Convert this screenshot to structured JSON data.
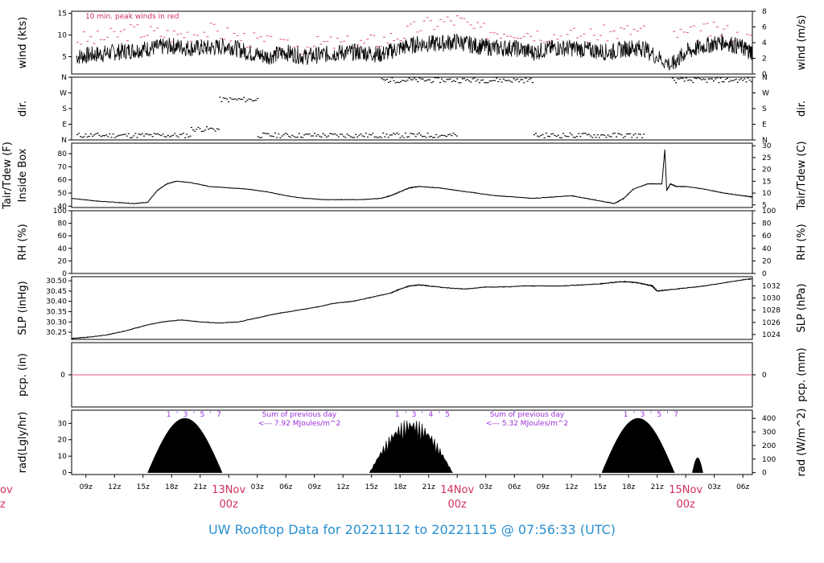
{
  "footer": {
    "text": "UW Rooftop Data for 20221112  to  20221115 @ 07:56:33  (UTC)",
    "color": "#2a8fd0"
  },
  "time_axis": {
    "start_hour_utc": 7.5,
    "end_hour_utc": 79.0,
    "tick_labels": [
      "09z",
      "12z",
      "15z",
      "18z",
      "21z",
      "03z",
      "06z",
      "09z",
      "12z",
      "15z",
      "18z",
      "21z",
      "03z",
      "06z",
      "09z",
      "12z",
      "15z",
      "18z",
      "21z",
      "03z",
      "06z"
    ],
    "tick_hours": [
      9,
      12,
      15,
      18,
      21,
      27,
      30,
      33,
      36,
      39,
      42,
      45,
      51,
      54,
      57,
      60,
      63,
      66,
      69,
      75,
      78
    ],
    "date_markers": [
      {
        "hour": 24,
        "line1": "13Nov",
        "line2": "00z"
      },
      {
        "hour": 48,
        "line1": "14Nov",
        "line2": "00z"
      },
      {
        "hour": 72,
        "line1": "15Nov",
        "line2": "00z"
      }
    ],
    "cut_off_left_marker": {
      "line1": "ov",
      "line2": "z"
    },
    "date_color": "#d0305a"
  },
  "panels": {
    "wind": {
      "left_label": "wind (kts)",
      "right_label": "wind (m/s)",
      "left_ticks": [
        "5",
        "10",
        "15"
      ],
      "right_ticks": [
        "0",
        "2",
        "4",
        "6",
        "8"
      ],
      "annotation": "10 min. peak winds in red"
    },
    "dir": {
      "left_label": "dir.",
      "right_label": "dir.",
      "ticks": [
        "N",
        "E",
        "S",
        "W",
        "N"
      ]
    },
    "temp": {
      "left_label_line1": "Tair/Tdew (F)",
      "left_label_line2": "Inside Box",
      "right_label": "Tair/Tdew (C)",
      "left_ticks": [
        "40",
        "50",
        "60",
        "70",
        "80"
      ],
      "right_ticks": [
        "5",
        "10",
        "15",
        "20",
        "25",
        "30"
      ]
    },
    "rh": {
      "left_label": "RH (%)",
      "right_label": "RH (%)",
      "ticks": [
        "0",
        "20",
        "40",
        "60",
        "80",
        "100"
      ]
    },
    "slp": {
      "left_label": "SLP (inHg)",
      "right_label": "SLP (hPa)",
      "left_ticks": [
        "30.25",
        "30.30",
        "30.35",
        "30.40",
        "30.45",
        "30.50"
      ],
      "right_ticks": [
        "1024",
        "1026",
        "1028",
        "1030",
        "1032"
      ]
    },
    "pcp": {
      "left_label": "pcp. (in)",
      "right_label": "pcp. (mm)",
      "left_ticks": [
        "0"
      ],
      "right_ticks": [
        "0"
      ]
    },
    "rad": {
      "left_label": "rad(Lgly/hr)",
      "right_label": "rad (W/m^2)",
      "left_ticks": [
        "0",
        "10",
        "20",
        "30"
      ],
      "right_ticks": [
        "0",
        "100",
        "200",
        "300",
        "400"
      ],
      "notes": [
        {
          "line1": "Sum of previous day",
          "line2": "<--- 7.92 MJoules/m^2"
        },
        {
          "line1": "Sum of previous day",
          "line2": "<--- 5.32 MJoules/m^2"
        }
      ],
      "hour_marks": [
        [
          "1",
          "'",
          "3",
          "'",
          "5",
          "'",
          "7"
        ],
        [
          "1",
          "'",
          "3",
          "'",
          "4",
          "'",
          "5"
        ],
        [
          "1",
          "'",
          "3",
          "'",
          "5",
          "'",
          "7"
        ]
      ]
    }
  },
  "chart_data": {
    "type": "line",
    "x_unit": "hours since 2022-11-12 00z",
    "series": {
      "wind_kts": {
        "x": [
          8,
          10,
          12,
          14,
          16,
          18,
          20,
          22,
          24,
          26,
          28,
          30,
          32,
          34,
          36,
          38,
          40,
          42,
          44,
          46,
          48,
          50,
          52,
          54,
          56,
          58,
          60,
          62,
          64,
          66,
          67.5,
          70.5,
          72,
          74,
          76,
          78,
          79
        ],
        "y": [
          5,
          5.5,
          6,
          6.5,
          7,
          7.5,
          7,
          7,
          7.5,
          6,
          5,
          6,
          5,
          5.5,
          6,
          6,
          5.5,
          7,
          8,
          8,
          8.5,
          7.5,
          7,
          7,
          6,
          7,
          7,
          6.5,
          6,
          7,
          7,
          3,
          6,
          7.5,
          8.5,
          7,
          6
        ]
      },
      "wind_peak_kts": {
        "x": [
          10,
          14,
          18,
          22,
          26,
          30,
          34,
          38,
          42,
          44,
          46,
          48,
          50,
          54,
          58,
          62,
          66,
          72,
          74,
          76,
          78
        ],
        "y": [
          9,
          11,
          10,
          11,
          9,
          7,
          8,
          8,
          10,
          12,
          13,
          13.5,
          11,
          11,
          10,
          10,
          11,
          10,
          11,
          11,
          9
        ]
      },
      "temp_F": {
        "x": [
          7.5,
          10,
          12,
          14,
          15.5,
          16.5,
          17.5,
          18.5,
          20,
          22,
          24,
          26,
          28,
          30,
          32,
          34,
          36,
          38,
          40,
          41,
          42,
          43,
          44,
          46,
          48,
          50,
          52,
          54,
          56,
          58,
          60,
          61.5,
          63,
          64.5,
          65.5,
          66.5,
          68,
          69.5,
          69.8,
          70,
          70.4,
          71,
          72,
          74,
          76,
          78,
          79
        ],
        "y": [
          46,
          44,
          43,
          42,
          43,
          52,
          57,
          59,
          58,
          55,
          54,
          53,
          51,
          48,
          46,
          45,
          45,
          45,
          46,
          48,
          51,
          54,
          55,
          54,
          52,
          50,
          48,
          47,
          46,
          47,
          48,
          46,
          44,
          42,
          46,
          53,
          57,
          57,
          83,
          52,
          57,
          55,
          55,
          53,
          50,
          48,
          47
        ]
      },
      "slp_inHg": {
        "x": [
          7.5,
          9,
          11,
          13,
          15,
          17,
          19,
          21,
          23,
          25,
          27,
          29,
          31,
          33,
          35,
          37,
          39,
          41,
          42,
          43,
          44,
          45,
          47,
          49,
          51,
          53,
          55,
          57,
          59,
          61,
          63,
          64,
          65,
          66,
          67,
          68,
          68.5,
          69,
          70,
          72,
          74,
          76,
          78,
          79
        ],
        "y": [
          30.22,
          30.225,
          30.235,
          30.255,
          30.28,
          30.3,
          30.31,
          30.3,
          30.295,
          30.3,
          30.32,
          30.34,
          30.355,
          30.37,
          30.39,
          30.4,
          30.42,
          30.44,
          30.46,
          30.475,
          30.48,
          30.475,
          30.465,
          30.46,
          30.47,
          30.47,
          30.475,
          30.475,
          30.475,
          30.48,
          30.485,
          30.49,
          30.495,
          30.495,
          30.49,
          30.48,
          30.475,
          30.45,
          30.455,
          30.465,
          30.475,
          30.49,
          30.505,
          30.51
        ]
      },
      "pcp_in": {
        "x": [
          7.5,
          79
        ],
        "y": [
          0,
          0
        ]
      },
      "rad_lgly_hr": {
        "days": [
          {
            "start": 15.5,
            "end": 23.3,
            "peak": 33
          },
          {
            "start": 38.8,
            "end": 47.5,
            "peak": 33
          },
          {
            "start": 63.2,
            "end": 70.8,
            "peak": 33
          },
          {
            "start": 72.7,
            "end": 73.8,
            "peak": 9
          }
        ]
      }
    }
  }
}
